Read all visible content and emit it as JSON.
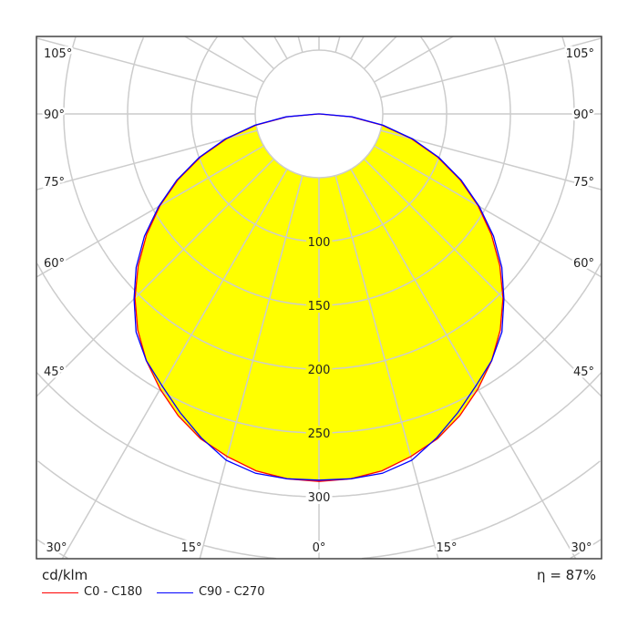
{
  "chart_data": {
    "type": "polar",
    "unit": "cd/klm",
    "efficiency": "η = 87%",
    "radial_ticks": [
      100,
      150,
      200,
      250,
      300
    ],
    "radial_grid_step": 50,
    "angle_labels_side": [
      "105°",
      "90°",
      "75°",
      "60°",
      "45°"
    ],
    "angle_labels_bottom": [
      "30°",
      "15°",
      "0°",
      "15°",
      "30°"
    ],
    "angle_grid_step_deg": 15,
    "fill_color": "#ffff00",
    "grid_color": "#cccccc",
    "angles": [
      0,
      5,
      10,
      15,
      20,
      25,
      30,
      35,
      40,
      45,
      50,
      55,
      60,
      65,
      70,
      75,
      80,
      85,
      90
    ],
    "series": [
      {
        "name": "C0 - C180",
        "color": "#ff0000",
        "values": [
          288,
          287,
          284,
          278,
          271,
          261,
          249,
          236,
          221,
          204,
          185,
          165,
          144,
          122,
          99,
          75,
          50,
          25,
          0
        ]
      },
      {
        "name": "C90 - C270",
        "color": "#0000ff",
        "values": [
          287,
          287,
          286,
          281,
          270,
          258,
          246,
          236,
          223,
          205,
          187,
          167,
          145,
          123,
          100,
          76,
          51,
          26,
          1
        ]
      }
    ]
  }
}
